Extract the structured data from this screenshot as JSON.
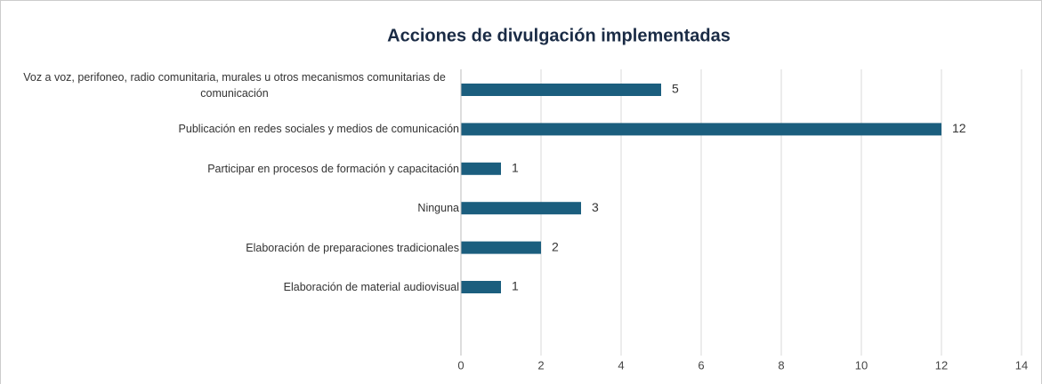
{
  "chart_data": {
    "type": "hbar",
    "title": "Acciones de divulgación implementadas",
    "categories": [
      "Voz a voz, perifoneo, radio comunitaria, murales u otros mecanismos comunitarias de comunicación",
      "Publicación en redes sociales y medios de comunicación",
      "Participar en procesos de formación y capacitación",
      "Ninguna",
      "Elaboración de preparaciones tradicionales",
      "Elaboración de material audiovisual"
    ],
    "values": [
      5,
      12,
      1,
      3,
      2,
      1
    ],
    "color": "#1b5e7e",
    "xlim": [
      0,
      14
    ],
    "xticks": [
      0,
      2,
      4,
      6,
      8,
      10,
      12,
      14
    ],
    "grid": true
  }
}
